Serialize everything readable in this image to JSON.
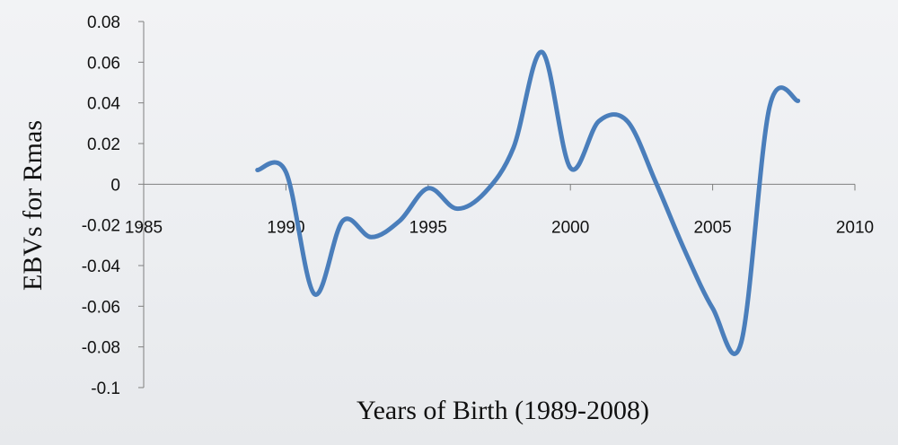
{
  "chart_data": {
    "type": "line",
    "title": "",
    "xlabel": "Years of Birth (1989-2008)",
    "ylabel": "EBVs for Rmas",
    "xlim": [
      1985,
      2010
    ],
    "ylim": [
      -0.1,
      0.08
    ],
    "x_ticks": [
      1985,
      1990,
      1995,
      2000,
      2005,
      2010
    ],
    "y_ticks": [
      0.08,
      0.06,
      0.04,
      0.02,
      0,
      -0.02,
      -0.04,
      -0.06,
      -0.08,
      -0.1
    ],
    "y_tick_labels": [
      "0.08",
      "0.06",
      "0.04",
      "0.02",
      "0",
      "-0.02",
      "-0.04",
      "-0.06",
      "-0.08",
      "-0.1"
    ],
    "x_tick_labels": [
      "1985",
      "1990",
      "1995",
      "2000",
      "2005",
      "2010"
    ],
    "grid": false,
    "smooth": true,
    "series": [
      {
        "color": "#4a7ebb",
        "x": [
          1989,
          1990,
          1991,
          1992,
          1993,
          1994,
          1995,
          1996,
          1997,
          1998,
          1999,
          2000,
          2001,
          2002,
          2003,
          2004,
          2005,
          2006,
          2007,
          2008
        ],
        "y": [
          0.007,
          0.006,
          -0.054,
          -0.018,
          -0.026,
          -0.018,
          -0.002,
          -0.012,
          -0.004,
          0.018,
          0.065,
          0.008,
          0.031,
          0.031,
          0.001,
          -0.032,
          -0.061,
          -0.078,
          0.038,
          0.041
        ]
      }
    ]
  }
}
